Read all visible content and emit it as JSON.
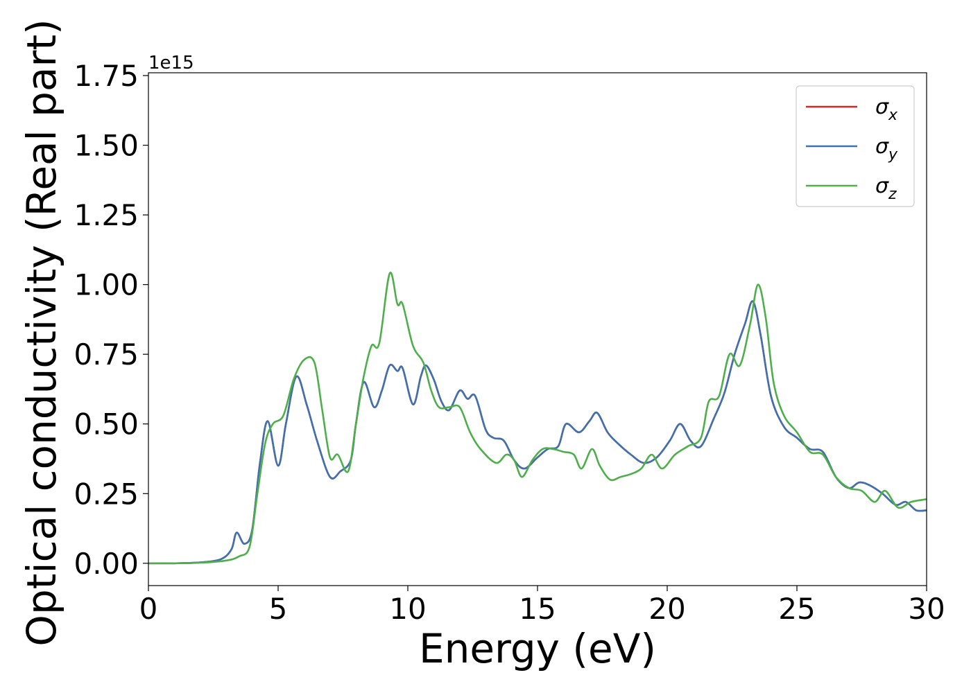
{
  "chart_data": {
    "type": "line",
    "xlabel": "Energy (eV)",
    "ylabel": "Optical conductivity (Real part)",
    "offset_text": "1e15",
    "xlim": [
      0,
      30
    ],
    "ylim": [
      -0.08,
      1.76
    ],
    "y_scale_factor": "1e15",
    "grid": false,
    "legend_position": "top-right",
    "x_ticks": [
      0,
      5,
      10,
      15,
      20,
      25,
      30
    ],
    "x_tick_labels": [
      "0",
      "5",
      "10",
      "15",
      "20",
      "25",
      "30"
    ],
    "y_ticks": [
      0.0,
      0.25,
      0.5,
      0.75,
      1.0,
      1.25,
      1.5,
      1.75
    ],
    "y_tick_labels": [
      "0.00",
      "0.25",
      "0.50",
      "0.75",
      "1.00",
      "1.25",
      "1.50",
      "1.75"
    ],
    "series": [
      {
        "name": "σx",
        "legend_base": "σ",
        "legend_sub": "x",
        "color": "#d62728",
        "points": [
          [
            0,
            0
          ],
          [
            1,
            0
          ],
          [
            2,
            0.003
          ],
          [
            2.8,
            0.015
          ],
          [
            3.2,
            0.05
          ],
          [
            3.4,
            0.11
          ],
          [
            3.7,
            0.07
          ],
          [
            4.0,
            0.12
          ],
          [
            4.3,
            0.36
          ],
          [
            4.6,
            0.51
          ],
          [
            5.0,
            0.35
          ],
          [
            5.3,
            0.5
          ],
          [
            5.7,
            0.67
          ],
          [
            6.1,
            0.57
          ],
          [
            6.5,
            0.44
          ],
          [
            7.0,
            0.31
          ],
          [
            7.4,
            0.33
          ],
          [
            7.8,
            0.37
          ],
          [
            8.0,
            0.5
          ],
          [
            8.3,
            0.65
          ],
          [
            8.7,
            0.56
          ],
          [
            9.0,
            0.62
          ],
          [
            9.3,
            0.71
          ],
          [
            9.6,
            0.69
          ],
          [
            9.8,
            0.7
          ],
          [
            10.2,
            0.57
          ],
          [
            10.5,
            0.67
          ],
          [
            10.7,
            0.71
          ],
          [
            11.0,
            0.66
          ],
          [
            11.3,
            0.58
          ],
          [
            11.6,
            0.55
          ],
          [
            12.0,
            0.62
          ],
          [
            12.3,
            0.59
          ],
          [
            12.6,
            0.6
          ],
          [
            13.0,
            0.48
          ],
          [
            13.3,
            0.45
          ],
          [
            13.7,
            0.44
          ],
          [
            14.1,
            0.37
          ],
          [
            14.5,
            0.34
          ],
          [
            15.0,
            0.38
          ],
          [
            15.4,
            0.41
          ],
          [
            15.8,
            0.42
          ],
          [
            16.1,
            0.5
          ],
          [
            16.6,
            0.47
          ],
          [
            17.0,
            0.51
          ],
          [
            17.3,
            0.54
          ],
          [
            17.7,
            0.47
          ],
          [
            18.1,
            0.43
          ],
          [
            18.6,
            0.39
          ],
          [
            19.1,
            0.36
          ],
          [
            19.6,
            0.38
          ],
          [
            20.1,
            0.44
          ],
          [
            20.5,
            0.5
          ],
          [
            20.9,
            0.44
          ],
          [
            21.3,
            0.42
          ],
          [
            21.8,
            0.52
          ],
          [
            22.2,
            0.61
          ],
          [
            22.6,
            0.75
          ],
          [
            23.0,
            0.86
          ],
          [
            23.3,
            0.94
          ],
          [
            23.6,
            0.82
          ],
          [
            24.0,
            0.6
          ],
          [
            24.5,
            0.49
          ],
          [
            25.0,
            0.45
          ],
          [
            25.5,
            0.41
          ],
          [
            26.0,
            0.4
          ],
          [
            26.5,
            0.31
          ],
          [
            27.0,
            0.27
          ],
          [
            27.4,
            0.29
          ],
          [
            27.8,
            0.28
          ],
          [
            28.3,
            0.25
          ],
          [
            28.8,
            0.21
          ],
          [
            29.2,
            0.22
          ],
          [
            29.6,
            0.19
          ],
          [
            30,
            0.19
          ]
        ]
      },
      {
        "name": "σy",
        "legend_base": "σ",
        "legend_sub": "y",
        "color": "#3d71b0",
        "points": [
          [
            0,
            0
          ],
          [
            1,
            0
          ],
          [
            2,
            0.003
          ],
          [
            2.8,
            0.015
          ],
          [
            3.2,
            0.05
          ],
          [
            3.4,
            0.11
          ],
          [
            3.7,
            0.07
          ],
          [
            4.0,
            0.12
          ],
          [
            4.3,
            0.36
          ],
          [
            4.6,
            0.51
          ],
          [
            5.0,
            0.35
          ],
          [
            5.3,
            0.5
          ],
          [
            5.7,
            0.67
          ],
          [
            6.1,
            0.57
          ],
          [
            6.5,
            0.44
          ],
          [
            7.0,
            0.31
          ],
          [
            7.4,
            0.33
          ],
          [
            7.8,
            0.37
          ],
          [
            8.0,
            0.5
          ],
          [
            8.3,
            0.65
          ],
          [
            8.7,
            0.56
          ],
          [
            9.0,
            0.62
          ],
          [
            9.3,
            0.71
          ],
          [
            9.6,
            0.69
          ],
          [
            9.8,
            0.7
          ],
          [
            10.2,
            0.57
          ],
          [
            10.5,
            0.67
          ],
          [
            10.7,
            0.71
          ],
          [
            11.0,
            0.66
          ],
          [
            11.3,
            0.58
          ],
          [
            11.6,
            0.55
          ],
          [
            12.0,
            0.62
          ],
          [
            12.3,
            0.59
          ],
          [
            12.6,
            0.6
          ],
          [
            13.0,
            0.48
          ],
          [
            13.3,
            0.45
          ],
          [
            13.7,
            0.44
          ],
          [
            14.1,
            0.37
          ],
          [
            14.5,
            0.34
          ],
          [
            15.0,
            0.38
          ],
          [
            15.4,
            0.41
          ],
          [
            15.8,
            0.42
          ],
          [
            16.1,
            0.5
          ],
          [
            16.6,
            0.47
          ],
          [
            17.0,
            0.51
          ],
          [
            17.3,
            0.54
          ],
          [
            17.7,
            0.47
          ],
          [
            18.1,
            0.43
          ],
          [
            18.6,
            0.39
          ],
          [
            19.1,
            0.36
          ],
          [
            19.6,
            0.38
          ],
          [
            20.1,
            0.44
          ],
          [
            20.5,
            0.5
          ],
          [
            20.9,
            0.44
          ],
          [
            21.3,
            0.42
          ],
          [
            21.8,
            0.52
          ],
          [
            22.2,
            0.61
          ],
          [
            22.6,
            0.75
          ],
          [
            23.0,
            0.86
          ],
          [
            23.3,
            0.94
          ],
          [
            23.6,
            0.82
          ],
          [
            24.0,
            0.6
          ],
          [
            24.5,
            0.49
          ],
          [
            25.0,
            0.45
          ],
          [
            25.5,
            0.41
          ],
          [
            26.0,
            0.4
          ],
          [
            26.5,
            0.31
          ],
          [
            27.0,
            0.27
          ],
          [
            27.4,
            0.29
          ],
          [
            27.8,
            0.28
          ],
          [
            28.3,
            0.25
          ],
          [
            28.8,
            0.21
          ],
          [
            29.2,
            0.22
          ],
          [
            29.6,
            0.19
          ],
          [
            30,
            0.19
          ]
        ]
      },
      {
        "name": "σz",
        "legend_base": "σ",
        "legend_sub": "z",
        "color": "#4daf4a",
        "points": [
          [
            0,
            0
          ],
          [
            1,
            0
          ],
          [
            2,
            0.002
          ],
          [
            3.0,
            0.01
          ],
          [
            3.5,
            0.025
          ],
          [
            3.9,
            0.06
          ],
          [
            4.2,
            0.25
          ],
          [
            4.5,
            0.43
          ],
          [
            4.8,
            0.5
          ],
          [
            5.2,
            0.53
          ],
          [
            5.6,
            0.66
          ],
          [
            6.0,
            0.73
          ],
          [
            6.4,
            0.72
          ],
          [
            6.7,
            0.55
          ],
          [
            7.0,
            0.38
          ],
          [
            7.3,
            0.39
          ],
          [
            7.7,
            0.33
          ],
          [
            8.0,
            0.5
          ],
          [
            8.3,
            0.67
          ],
          [
            8.6,
            0.78
          ],
          [
            8.9,
            0.79
          ],
          [
            9.3,
            1.04
          ],
          [
            9.6,
            0.93
          ],
          [
            9.8,
            0.93
          ],
          [
            10.2,
            0.78
          ],
          [
            10.6,
            0.72
          ],
          [
            10.9,
            0.62
          ],
          [
            11.2,
            0.56
          ],
          [
            11.6,
            0.56
          ],
          [
            12.0,
            0.56
          ],
          [
            12.4,
            0.47
          ],
          [
            12.8,
            0.41
          ],
          [
            13.4,
            0.36
          ],
          [
            13.8,
            0.39
          ],
          [
            14.1,
            0.37
          ],
          [
            14.4,
            0.31
          ],
          [
            14.8,
            0.37
          ],
          [
            15.2,
            0.41
          ],
          [
            15.6,
            0.41
          ],
          [
            16.0,
            0.4
          ],
          [
            16.4,
            0.39
          ],
          [
            16.7,
            0.34
          ],
          [
            17.1,
            0.41
          ],
          [
            17.4,
            0.35
          ],
          [
            17.8,
            0.3
          ],
          [
            18.2,
            0.31
          ],
          [
            18.6,
            0.32
          ],
          [
            19.0,
            0.34
          ],
          [
            19.4,
            0.39
          ],
          [
            19.8,
            0.34
          ],
          [
            20.3,
            0.39
          ],
          [
            20.8,
            0.42
          ],
          [
            21.3,
            0.45
          ],
          [
            21.6,
            0.58
          ],
          [
            22.0,
            0.6
          ],
          [
            22.4,
            0.75
          ],
          [
            22.8,
            0.71
          ],
          [
            23.2,
            0.86
          ],
          [
            23.5,
            1.0
          ],
          [
            23.8,
            0.88
          ],
          [
            24.1,
            0.65
          ],
          [
            24.5,
            0.53
          ],
          [
            25.0,
            0.47
          ],
          [
            25.5,
            0.4
          ],
          [
            26.0,
            0.39
          ],
          [
            26.5,
            0.31
          ],
          [
            27.0,
            0.27
          ],
          [
            27.5,
            0.26
          ],
          [
            28.0,
            0.22
          ],
          [
            28.4,
            0.26
          ],
          [
            28.9,
            0.2
          ],
          [
            29.4,
            0.22
          ],
          [
            30,
            0.23
          ]
        ]
      }
    ]
  }
}
